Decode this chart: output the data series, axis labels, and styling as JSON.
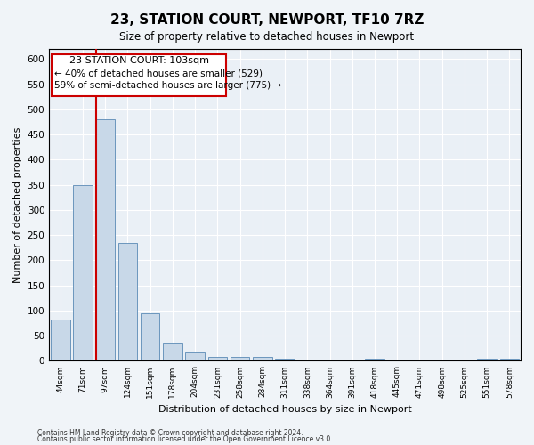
{
  "title": "23, STATION COURT, NEWPORT, TF10 7RZ",
  "subtitle": "Size of property relative to detached houses in Newport",
  "xlabel": "Distribution of detached houses by size in Newport",
  "ylabel": "Number of detached properties",
  "categories": [
    "44sqm",
    "71sqm",
    "97sqm",
    "124sqm",
    "151sqm",
    "178sqm",
    "204sqm",
    "231sqm",
    "258sqm",
    "284sqm",
    "311sqm",
    "338sqm",
    "364sqm",
    "391sqm",
    "418sqm",
    "445sqm",
    "471sqm",
    "498sqm",
    "525sqm",
    "551sqm",
    "578sqm"
  ],
  "values": [
    82,
    350,
    480,
    235,
    95,
    37,
    17,
    7,
    8,
    8,
    5,
    0,
    0,
    0,
    5,
    0,
    0,
    0,
    0,
    5,
    5
  ],
  "bar_color": "#c8d8e8",
  "bar_edge_color": "#5a8ab5",
  "property_line_color": "#cc0000",
  "annotation_title": "23 STATION COURT: 103sqm",
  "annotation_line1": "← 40% of detached houses are smaller (529)",
  "annotation_line2": "59% of semi-detached houses are larger (775) →",
  "annotation_box_color": "#cc0000",
  "ylim": [
    0,
    620
  ],
  "yticks": [
    0,
    50,
    100,
    150,
    200,
    250,
    300,
    350,
    400,
    450,
    500,
    550,
    600
  ],
  "footnote1": "Contains HM Land Registry data © Crown copyright and database right 2024.",
  "footnote2": "Contains public sector information licensed under the Open Government Licence v3.0.",
  "background_color": "#f0f4f8",
  "plot_bg_color": "#eaf0f6"
}
